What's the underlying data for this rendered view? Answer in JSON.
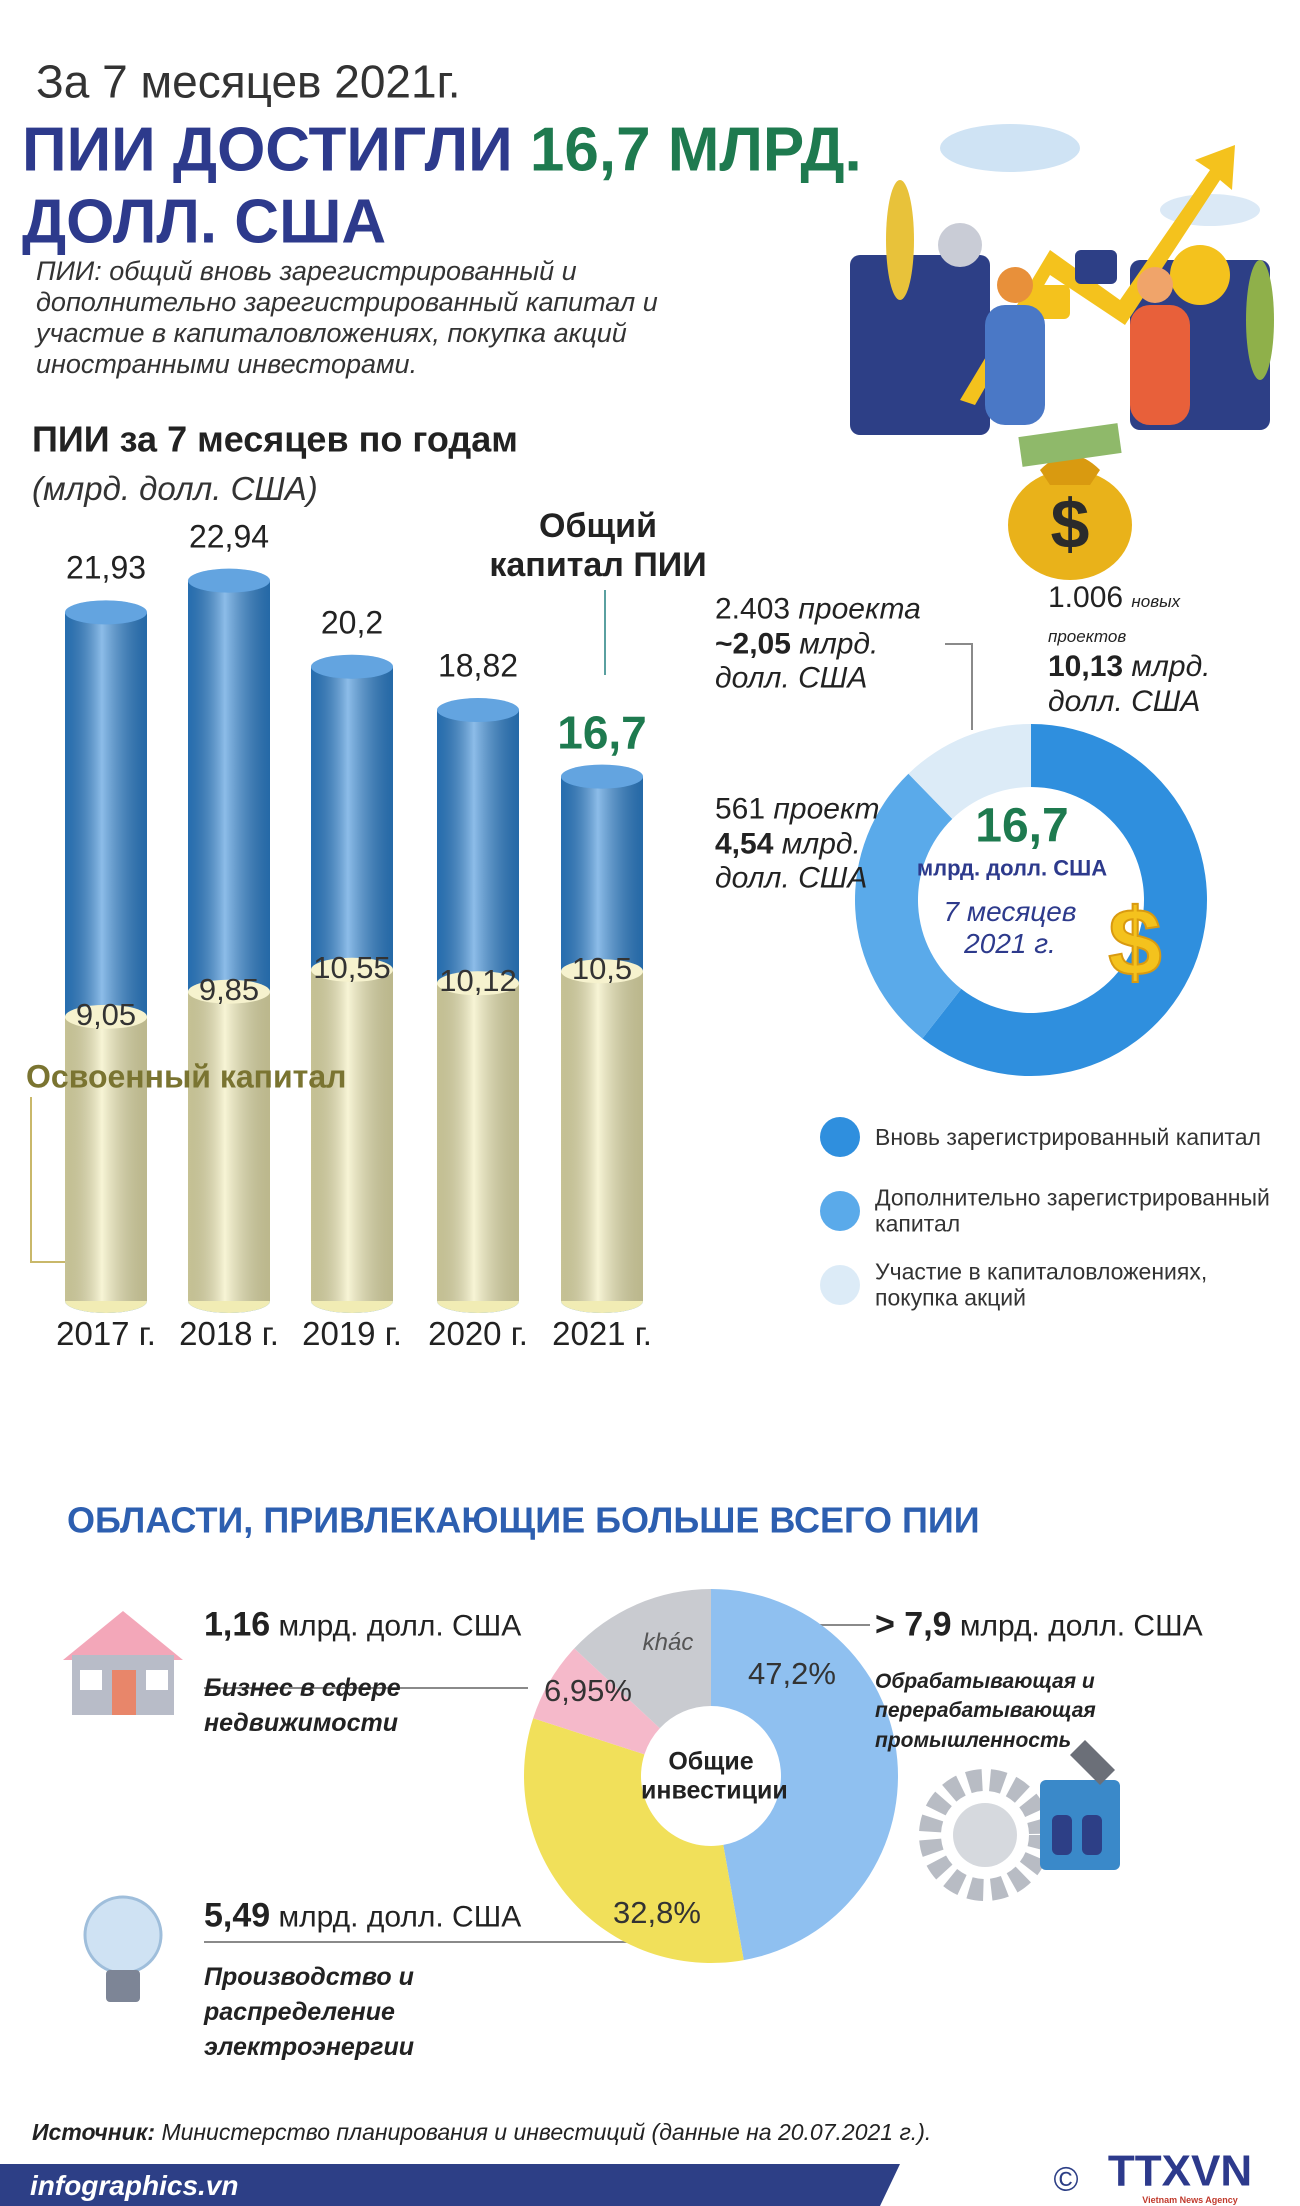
{
  "header": {
    "kicker": "За 7 месяцев 2021г.",
    "title_part1": "ПИИ ДОСТИГЛИ",
    "title_highlight": "16,7 МЛРД.",
    "title_part2": "ДОЛЛ. США",
    "definition": "ПИИ: общий вновь зарегистрированный и дополнительно зарегистрированный капитал и участие в капиталовложениях, покупка акций иностранными инвесторами."
  },
  "chart_data": [
    {
      "type": "bar",
      "title": "ПИИ за 7 месяцев по годам",
      "subtitle": "(млрд. долл. США)",
      "categories": [
        "2017 г.",
        "2018 г.",
        "2019 г.",
        "2020 г.",
        "2021 г."
      ],
      "series": [
        {
          "name": "Общий капитал ПИИ",
          "color": "#2f86d6",
          "values": [
            21.93,
            22.94,
            20.2,
            18.82,
            16.7
          ],
          "value_labels": [
            "21,93",
            "22,94",
            "20,2",
            "18,82",
            "16,7"
          ]
        },
        {
          "name": "Освоенный капитал",
          "color": "#f1ecb4",
          "values": [
            9.05,
            9.85,
            10.55,
            10.12,
            10.5
          ],
          "value_labels": [
            "9,05",
            "9,85",
            "10,55",
            "10,12",
            "10,5"
          ]
        }
      ]
    },
    {
      "type": "donut",
      "categories": [
        "Вновь зарегистрированный капитал",
        "Дополнительно зарегистрированный капитал",
        "Участие в капиталовложениях, покупка акций"
      ],
      "values": [
        10.13,
        4.54,
        2.05
      ],
      "value_labels": [
        "10,13",
        "4,54",
        "~2,05"
      ],
      "colors": [
        "#2f8fde",
        "#5aaaea",
        "#dcebf7"
      ],
      "value_unit": "млрд. долл. США",
      "projects": [
        "1.006",
        "561",
        "2.403"
      ],
      "project_units": [
        "новых проектов",
        "проект",
        "проекта"
      ],
      "center_value": "16,7",
      "center_unit": "млрд. долл. США",
      "center_period": "7 месяцев 2021 г."
    },
    {
      "type": "donut",
      "categories": [
        null,
        null,
        null,
        "khác"
      ],
      "descriptions": [
        "Обрабатывающая и перерабатывающая промышленность",
        "Производство и распределение электроэнергии",
        "Бизнес в сфере недвижимости",
        null
      ],
      "values": [
        47.2,
        32.8,
        6.95,
        13.05
      ],
      "value_labels": [
        "47,2%",
        "32,8%",
        "6,95%",
        null
      ],
      "amounts": [
        "> 7,9",
        "5,49",
        "1,16",
        null
      ],
      "amount_unit": "млрд. долл. США",
      "colors": [
        "#8fc0f0",
        "#f1e05a",
        "#f5b9ca",
        "#c9cbd0"
      ],
      "center_label": "Общие инвестиции"
    }
  ],
  "section2": {
    "title": "ОБЛАСТИ, ПРИВЛЕКАЮЩИЕ БОЛЬШЕ ВСЕГО ПИИ"
  },
  "footer": {
    "source_label": "Источник:",
    "source_text": "Министерство планирования и инвестиций (данные на 20.07.2021 г.).",
    "site": "infographics.vn",
    "copyright": "©",
    "logo": "TTXVN",
    "logo_subtitle": "Vietnam News Agency"
  }
}
